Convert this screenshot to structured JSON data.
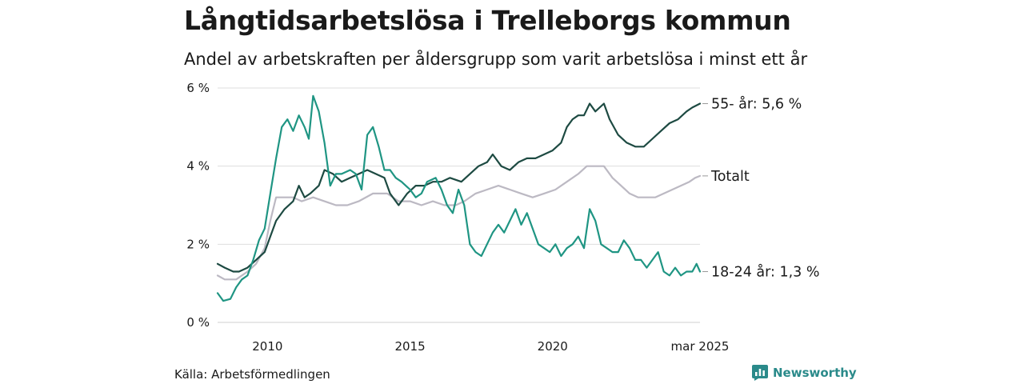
{
  "title": "Långtidsarbetslösa i Trelleborgs kommun",
  "subtitle": "Andel av arbetskraften per åldersgrupp som varit arbetslösa i minst ett år",
  "source": "Källa: Arbetsförmedlingen",
  "brand": {
    "name": "Newsworthy",
    "icon": "newsworthy-logo-icon",
    "color": "#2a8a8a"
  },
  "chart_data": {
    "type": "line",
    "title": "Långtidsarbetslösa i Trelleborgs kommun",
    "subtitle": "Andel av arbetskraften per åldersgrupp som varit arbetslösa i minst ett år",
    "xlabel": "",
    "ylabel": "",
    "xlim": [
      2008.25,
      2025.17
    ],
    "ylim": [
      0,
      6
    ],
    "x_ticks": [
      {
        "value": 2010,
        "label": "2010"
      },
      {
        "value": 2015,
        "label": "2015"
      },
      {
        "value": 2020,
        "label": "2020"
      },
      {
        "value": 2025.17,
        "label": "mar 2025"
      }
    ],
    "y_ticks": [
      {
        "value": 0,
        "label": "0 %"
      },
      {
        "value": 2,
        "label": "2 %"
      },
      {
        "value": 4,
        "label": "4 %"
      },
      {
        "value": 6,
        "label": "6 %"
      }
    ],
    "grid": true,
    "series": [
      {
        "name": "Totalt",
        "end_label": "Totalt",
        "color": "#bcb9c3",
        "points": [
          [
            2008.25,
            1.2
          ],
          [
            2008.5,
            1.1
          ],
          [
            2008.9,
            1.1
          ],
          [
            2009.3,
            1.3
          ],
          [
            2009.6,
            1.5
          ],
          [
            2009.9,
            1.9
          ],
          [
            2010.1,
            2.6
          ],
          [
            2010.3,
            3.2
          ],
          [
            2010.6,
            3.2
          ],
          [
            2010.9,
            3.2
          ],
          [
            2011.2,
            3.1
          ],
          [
            2011.6,
            3.2
          ],
          [
            2012.0,
            3.1
          ],
          [
            2012.4,
            3.0
          ],
          [
            2012.8,
            3.0
          ],
          [
            2013.2,
            3.1
          ],
          [
            2013.7,
            3.3
          ],
          [
            2014.2,
            3.3
          ],
          [
            2014.6,
            3.1
          ],
          [
            2015.0,
            3.1
          ],
          [
            2015.4,
            3.0
          ],
          [
            2015.8,
            3.1
          ],
          [
            2016.2,
            3.0
          ],
          [
            2016.6,
            3.0
          ],
          [
            2016.9,
            3.1
          ],
          [
            2017.3,
            3.3
          ],
          [
            2017.7,
            3.4
          ],
          [
            2018.1,
            3.5
          ],
          [
            2018.5,
            3.4
          ],
          [
            2018.9,
            3.3
          ],
          [
            2019.3,
            3.2
          ],
          [
            2019.7,
            3.3
          ],
          [
            2020.1,
            3.4
          ],
          [
            2020.5,
            3.6
          ],
          [
            2020.9,
            3.8
          ],
          [
            2021.2,
            4.0
          ],
          [
            2021.5,
            4.0
          ],
          [
            2021.8,
            4.0
          ],
          [
            2022.1,
            3.7
          ],
          [
            2022.4,
            3.5
          ],
          [
            2022.7,
            3.3
          ],
          [
            2023.0,
            3.2
          ],
          [
            2023.3,
            3.2
          ],
          [
            2023.6,
            3.2
          ],
          [
            2023.9,
            3.3
          ],
          [
            2024.2,
            3.4
          ],
          [
            2024.5,
            3.5
          ],
          [
            2024.8,
            3.6
          ],
          [
            2025.0,
            3.7
          ],
          [
            2025.17,
            3.75
          ]
        ]
      },
      {
        "name": "55- år",
        "end_label": "55- år: 5,6 %",
        "color": "#1d4a42",
        "points": [
          [
            2008.25,
            1.5
          ],
          [
            2008.5,
            1.4
          ],
          [
            2008.8,
            1.3
          ],
          [
            2009.0,
            1.3
          ],
          [
            2009.3,
            1.4
          ],
          [
            2009.6,
            1.6
          ],
          [
            2009.9,
            1.8
          ],
          [
            2010.1,
            2.2
          ],
          [
            2010.3,
            2.6
          ],
          [
            2010.6,
            2.9
          ],
          [
            2010.9,
            3.1
          ],
          [
            2011.1,
            3.5
          ],
          [
            2011.3,
            3.2
          ],
          [
            2011.5,
            3.3
          ],
          [
            2011.8,
            3.5
          ],
          [
            2012.0,
            3.9
          ],
          [
            2012.3,
            3.8
          ],
          [
            2012.6,
            3.6
          ],
          [
            2012.9,
            3.7
          ],
          [
            2013.2,
            3.8
          ],
          [
            2013.5,
            3.9
          ],
          [
            2013.8,
            3.8
          ],
          [
            2014.1,
            3.7
          ],
          [
            2014.3,
            3.3
          ],
          [
            2014.6,
            3.0
          ],
          [
            2014.9,
            3.3
          ],
          [
            2015.2,
            3.5
          ],
          [
            2015.5,
            3.5
          ],
          [
            2015.8,
            3.6
          ],
          [
            2016.1,
            3.6
          ],
          [
            2016.4,
            3.7
          ],
          [
            2016.8,
            3.6
          ],
          [
            2017.1,
            3.8
          ],
          [
            2017.4,
            4.0
          ],
          [
            2017.7,
            4.1
          ],
          [
            2017.9,
            4.3
          ],
          [
            2018.2,
            4.0
          ],
          [
            2018.5,
            3.9
          ],
          [
            2018.8,
            4.1
          ],
          [
            2019.1,
            4.2
          ],
          [
            2019.4,
            4.2
          ],
          [
            2019.7,
            4.3
          ],
          [
            2020.0,
            4.4
          ],
          [
            2020.3,
            4.6
          ],
          [
            2020.5,
            5.0
          ],
          [
            2020.7,
            5.2
          ],
          [
            2020.9,
            5.3
          ],
          [
            2021.1,
            5.3
          ],
          [
            2021.3,
            5.6
          ],
          [
            2021.5,
            5.4
          ],
          [
            2021.8,
            5.6
          ],
          [
            2022.0,
            5.2
          ],
          [
            2022.3,
            4.8
          ],
          [
            2022.6,
            4.6
          ],
          [
            2022.9,
            4.5
          ],
          [
            2023.2,
            4.5
          ],
          [
            2023.5,
            4.7
          ],
          [
            2023.8,
            4.9
          ],
          [
            2024.1,
            5.1
          ],
          [
            2024.4,
            5.2
          ],
          [
            2024.7,
            5.4
          ],
          [
            2024.9,
            5.5
          ],
          [
            2025.17,
            5.6
          ]
        ]
      },
      {
        "name": "18-24 år",
        "end_label": "18-24 år: 1,3 %",
        "color": "#1f9583",
        "points": [
          [
            2008.25,
            0.75
          ],
          [
            2008.45,
            0.55
          ],
          [
            2008.7,
            0.6
          ],
          [
            2008.9,
            0.9
          ],
          [
            2009.1,
            1.1
          ],
          [
            2009.3,
            1.2
          ],
          [
            2009.5,
            1.6
          ],
          [
            2009.7,
            2.1
          ],
          [
            2009.9,
            2.4
          ],
          [
            2010.1,
            3.3
          ],
          [
            2010.3,
            4.2
          ],
          [
            2010.5,
            5.0
          ],
          [
            2010.7,
            5.2
          ],
          [
            2010.9,
            4.9
          ],
          [
            2011.1,
            5.3
          ],
          [
            2011.3,
            5.0
          ],
          [
            2011.45,
            4.7
          ],
          [
            2011.6,
            5.8
          ],
          [
            2011.8,
            5.4
          ],
          [
            2012.0,
            4.6
          ],
          [
            2012.2,
            3.5
          ],
          [
            2012.4,
            3.8
          ],
          [
            2012.6,
            3.8
          ],
          [
            2012.9,
            3.9
          ],
          [
            2013.1,
            3.8
          ],
          [
            2013.3,
            3.4
          ],
          [
            2013.5,
            4.8
          ],
          [
            2013.7,
            5.0
          ],
          [
            2013.9,
            4.5
          ],
          [
            2014.1,
            3.9
          ],
          [
            2014.3,
            3.9
          ],
          [
            2014.5,
            3.7
          ],
          [
            2014.7,
            3.6
          ],
          [
            2015.0,
            3.4
          ],
          [
            2015.2,
            3.2
          ],
          [
            2015.4,
            3.3
          ],
          [
            2015.6,
            3.6
          ],
          [
            2015.9,
            3.7
          ],
          [
            2016.1,
            3.4
          ],
          [
            2016.3,
            3.0
          ],
          [
            2016.5,
            2.8
          ],
          [
            2016.7,
            3.4
          ],
          [
            2016.9,
            3.0
          ],
          [
            2017.1,
            2.0
          ],
          [
            2017.3,
            1.8
          ],
          [
            2017.5,
            1.7
          ],
          [
            2017.7,
            2.0
          ],
          [
            2017.9,
            2.3
          ],
          [
            2018.1,
            2.5
          ],
          [
            2018.3,
            2.3
          ],
          [
            2018.5,
            2.6
          ],
          [
            2018.7,
            2.9
          ],
          [
            2018.9,
            2.5
          ],
          [
            2019.1,
            2.8
          ],
          [
            2019.3,
            2.4
          ],
          [
            2019.5,
            2.0
          ],
          [
            2019.7,
            1.9
          ],
          [
            2019.9,
            1.8
          ],
          [
            2020.1,
            2.0
          ],
          [
            2020.3,
            1.7
          ],
          [
            2020.5,
            1.9
          ],
          [
            2020.7,
            2.0
          ],
          [
            2020.9,
            2.2
          ],
          [
            2021.1,
            1.9
          ],
          [
            2021.3,
            2.9
          ],
          [
            2021.5,
            2.6
          ],
          [
            2021.7,
            2.0
          ],
          [
            2021.9,
            1.9
          ],
          [
            2022.1,
            1.8
          ],
          [
            2022.3,
            1.8
          ],
          [
            2022.5,
            2.1
          ],
          [
            2022.7,
            1.9
          ],
          [
            2022.9,
            1.6
          ],
          [
            2023.1,
            1.6
          ],
          [
            2023.3,
            1.4
          ],
          [
            2023.5,
            1.6
          ],
          [
            2023.7,
            1.8
          ],
          [
            2023.9,
            1.3
          ],
          [
            2024.1,
            1.2
          ],
          [
            2024.3,
            1.4
          ],
          [
            2024.5,
            1.2
          ],
          [
            2024.7,
            1.3
          ],
          [
            2024.9,
            1.3
          ],
          [
            2025.05,
            1.5
          ],
          [
            2025.17,
            1.3
          ]
        ]
      }
    ]
  }
}
